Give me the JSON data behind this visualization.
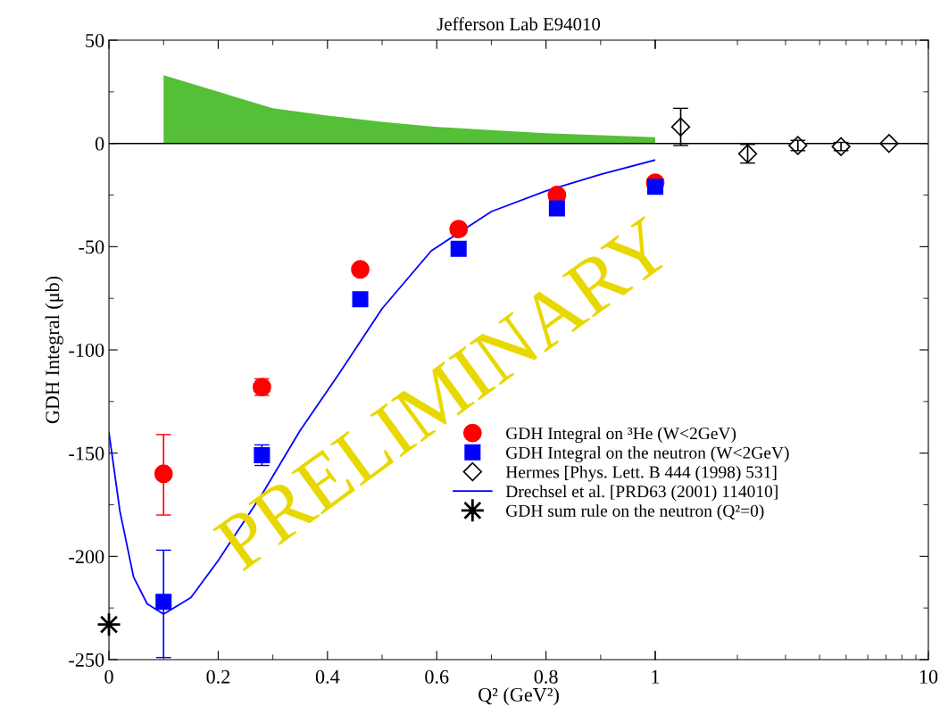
{
  "chart_data": [
    {
      "type": "scatter",
      "title": "Jefferson Lab E94010",
      "xlabel": "Q² (GeV²)",
      "ylabel": "GDH Integral (μb)",
      "xlim": [
        0,
        1
      ],
      "xticks": [
        0,
        0.2,
        0.4,
        0.6,
        0.8,
        {
          "value": 1,
          "label": null
        }
      ],
      "ylim": [
        -250,
        50
      ],
      "yticks": [
        -250,
        -200,
        -150,
        -100,
        -50,
        0,
        50
      ],
      "legend": "right",
      "ref_lines": [
        {
          "axis": "y",
          "value": 0,
          "color": "#000000"
        }
      ],
      "annotations": [
        "PRELIMINARY"
      ],
      "series": [
        {
          "type": "area",
          "color": "#55bf37",
          "x": [
            0.1,
            0.2,
            0.3,
            0.4,
            0.5,
            0.6,
            0.7,
            0.8,
            0.9,
            1.0
          ],
          "values": [
            33,
            25,
            17,
            13.5,
            10.5,
            8,
            6.5,
            5,
            4,
            3
          ]
        },
        {
          "type": "line",
          "name": "Drechsel et al. [PRD63 (2001) 114010]",
          "color": "#0000ff",
          "marker": "none",
          "x": [
            0,
            0.02,
            0.045,
            0.07,
            0.1,
            0.15,
            0.2,
            0.28,
            0.35,
            0.42,
            0.5,
            0.59,
            0.7,
            0.8,
            0.9,
            1.0
          ],
          "values": [
            -140,
            -178,
            -210,
            -223,
            -228,
            -220,
            -202,
            -170,
            -139,
            -112,
            -80,
            -52,
            -33,
            -23,
            -15,
            -8
          ]
        },
        {
          "type": "scatter",
          "name": "GDH Integral on ³He (W<2GeV)",
          "color": "#ff0000",
          "marker": "circle",
          "x": [
            0.1,
            0.28,
            0.46,
            0.64,
            0.82,
            1.0
          ],
          "values": [
            -160,
            -118,
            -61,
            -41.5,
            -25,
            -19
          ],
          "errors": [
            [
              -180,
              -141
            ],
            4,
            2,
            null,
            null,
            null
          ]
        },
        {
          "type": "scatter",
          "name": "GDH Integral on the neutron (W<2GeV)",
          "color": "#0000ff",
          "marker": "square",
          "x": [
            0.1,
            0.28,
            0.46,
            0.64,
            0.82,
            1.0
          ],
          "values": [
            -222,
            -151,
            -75.5,
            -51,
            -31.5,
            -21
          ],
          "errors": [
            [
              -249,
              -197
            ],
            5,
            2,
            null,
            null,
            null
          ]
        },
        {
          "type": "scatter",
          "name": "GDH sum rule on the neutron (Q²=0)",
          "color": "#000000",
          "marker": "star",
          "x": [
            0
          ],
          "values": [
            -233
          ]
        }
      ]
    },
    {
      "type": "scatter",
      "log": "x",
      "xlim": [
        1,
        10
      ],
      "xticks": [
        1,
        10
      ],
      "ylim": [
        -250,
        50
      ],
      "yticks": [
        -250,
        -200,
        -150,
        -100,
        -50,
        0,
        50
      ],
      "tick_labels": "x",
      "ref_lines": [
        {
          "axis": "y",
          "value": 0,
          "color": "#000000"
        }
      ],
      "series": [
        {
          "type": "scatter",
          "name": "Hermes [Phys. Lett. B 444 (1998) 531]",
          "color": "#000000",
          "marker": "diamond",
          "x": [
            1.24,
            2.18,
            3.33,
            4.79,
            7.18
          ],
          "values": [
            8,
            -5,
            -1,
            -1.5,
            0
          ],
          "errors": [
            [
              -1,
              17
            ],
            4.5,
            2.5,
            2,
            null
          ]
        }
      ]
    }
  ]
}
